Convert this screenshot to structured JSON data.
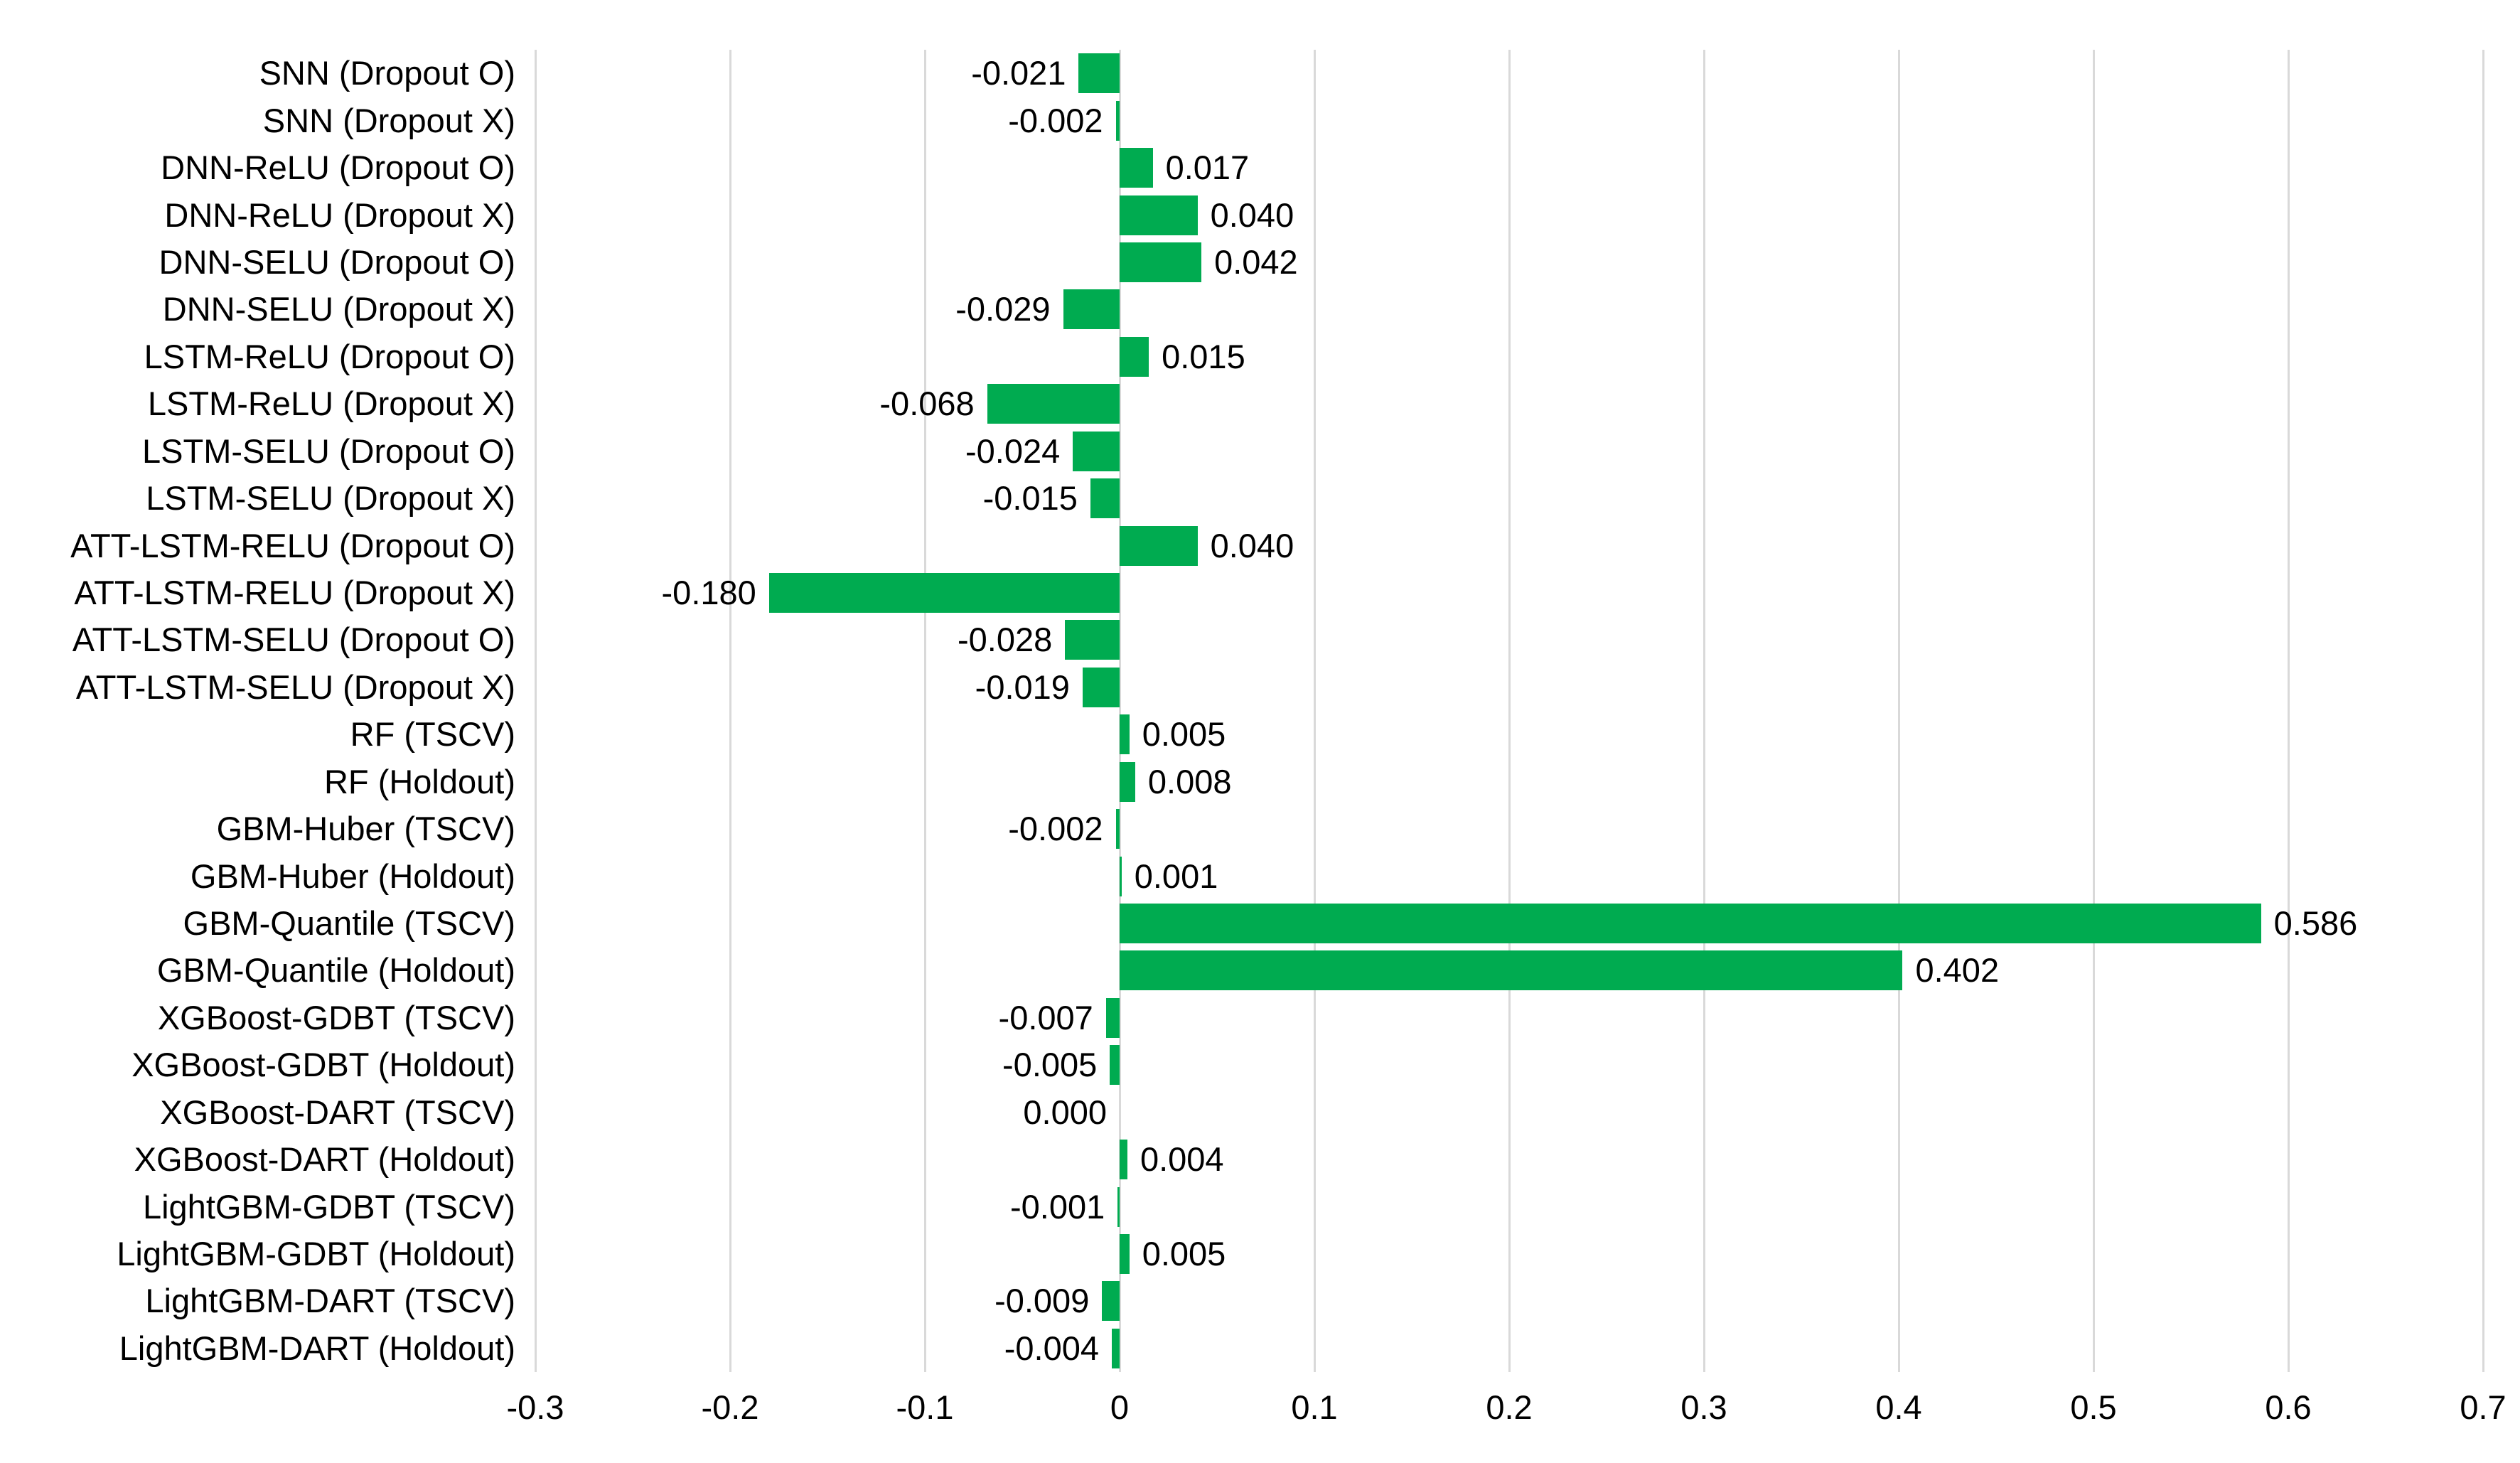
{
  "chart_data": {
    "type": "bar",
    "orientation": "horizontal",
    "title": "",
    "xlabel": "",
    "ylabel": "",
    "xlim": [
      -0.3,
      0.7
    ],
    "x_tick_labels": [
      "-0.3",
      "-0.2",
      "-0.1",
      "0",
      "0.1",
      "0.2",
      "0.3",
      "0.4",
      "0.5",
      "0.6",
      "0.7"
    ],
    "x_tick_values": [
      -0.3,
      -0.2,
      -0.1,
      0,
      0.1,
      0.2,
      0.3,
      0.4,
      0.5,
      0.6,
      0.7
    ],
    "grid": "vertical-gridlines-on",
    "legend": "none",
    "bar_color": "#00ab50",
    "gridline_color": "#d9d9d9",
    "label_color": "#000000",
    "categories": [
      "SNN (Dropout O)",
      "SNN (Dropout X)",
      "DNN-ReLU (Dropout O)",
      "DNN-ReLU (Dropout X)",
      "DNN-SELU (Dropout O)",
      "DNN-SELU (Dropout X)",
      "LSTM-ReLU (Dropout O)",
      "LSTM-ReLU (Dropout X)",
      "LSTM-SELU (Dropout O)",
      "LSTM-SELU (Dropout X)",
      "ATT-LSTM-RELU (Dropout O)",
      "ATT-LSTM-RELU (Dropout X)",
      "ATT-LSTM-SELU (Dropout O)",
      "ATT-LSTM-SELU (Dropout X)",
      "RF (TSCV)",
      "RF (Holdout)",
      "GBM-Huber (TSCV)",
      "GBM-Huber (Holdout)",
      "GBM-Quantile (TSCV)",
      "GBM-Quantile (Holdout)",
      "XGBoost-GDBT (TSCV)",
      "XGBoost-GDBT (Holdout)",
      "XGBoost-DART (TSCV)",
      "XGBoost-DART (Holdout)",
      "LightGBM-GDBT (TSCV)",
      "LightGBM-GDBT (Holdout)",
      "LightGBM-DART (TSCV)",
      "LightGBM-DART (Holdout)"
    ],
    "values": [
      -0.021,
      -0.002,
      0.017,
      0.04,
      0.042,
      -0.029,
      0.015,
      -0.068,
      -0.024,
      -0.015,
      0.04,
      -0.18,
      -0.028,
      -0.019,
      0.005,
      0.008,
      -0.002,
      0.001,
      0.586,
      0.402,
      -0.007,
      -0.005,
      0.0,
      0.004,
      -0.001,
      0.005,
      -0.009,
      -0.004
    ],
    "value_labels": [
      "-0.021",
      "-0.002",
      "0.017",
      "0.040",
      "0.042",
      "-0.029",
      "0.015",
      "-0.068",
      "-0.024",
      "-0.015",
      "0.040",
      "-0.180",
      "-0.028",
      "-0.019",
      "0.005",
      "0.008",
      "-0.002",
      "0.001",
      "0.586",
      "0.402",
      "-0.007",
      "-0.005",
      "0.000",
      "0.004",
      "-0.001",
      "0.005",
      "-0.009",
      "-0.004"
    ]
  }
}
